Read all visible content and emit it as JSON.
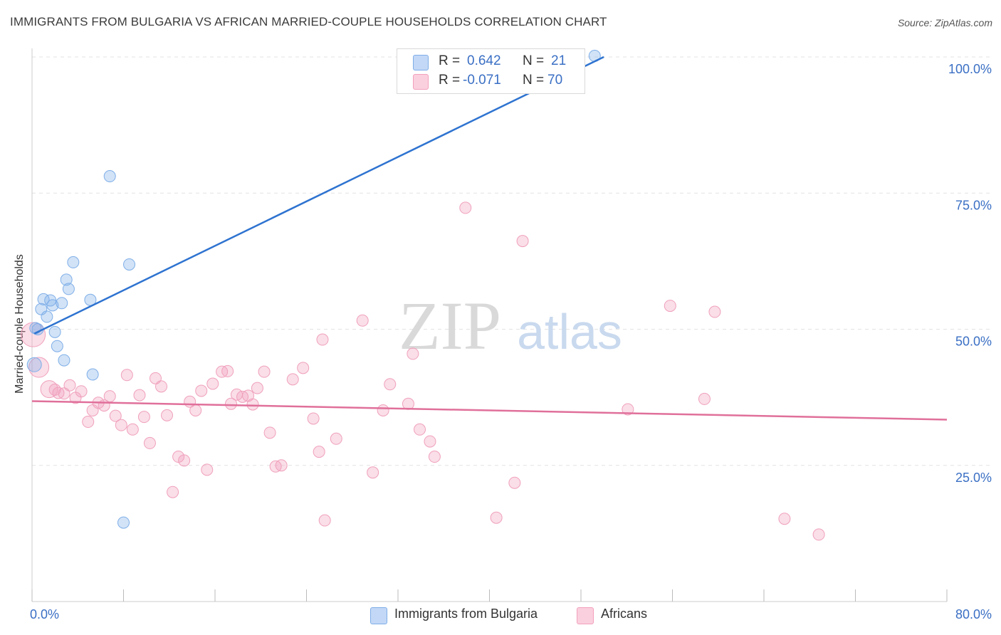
{
  "chart_data": {
    "type": "scatter",
    "title": "IMMIGRANTS FROM BULGARIA VS AFRICAN MARRIED-COUPLE HOUSEHOLDS CORRELATION CHART",
    "source": "Source: ZipAtlas.com",
    "watermark": {
      "zip": "ZIP",
      "atlas": "atlas"
    },
    "ylabel": "Married-couple Households",
    "xlim": [
      0,
      80
    ],
    "ylim": [
      0,
      102
    ],
    "x_tick_labels": [
      {
        "value": 0,
        "label": "0.0%"
      },
      {
        "value": 80,
        "label": "80.0%"
      }
    ],
    "y_tick_labels": [
      {
        "value": 25,
        "label": "25.0%"
      },
      {
        "value": 50,
        "label": "50.0%"
      },
      {
        "value": 75,
        "label": "75.0%"
      },
      {
        "value": 100,
        "label": "100.0%"
      }
    ],
    "legend": [
      {
        "r_label": "R = ",
        "r_value": "0.642",
        "n_label": "N = ",
        "n_value": "21"
      },
      {
        "r_label": "R = ",
        "r_value": "-0.071",
        "n_label": "N = ",
        "n_value": "70"
      }
    ],
    "series": [
      {
        "name": "Immigrants from Bulgaria",
        "color": "#7eaee8",
        "line_color": "#2e73d0",
        "trend": [
          [
            0.2,
            49.2
          ],
          [
            50.0,
            100.0
          ]
        ],
        "points": [
          [
            0.2,
            43.5
          ],
          [
            0.5,
            50.0
          ],
          [
            0.8,
            53.7
          ],
          [
            1.0,
            55.5
          ],
          [
            1.3,
            52.3
          ],
          [
            1.6,
            55.3
          ],
          [
            1.8,
            54.4
          ],
          [
            2.0,
            49.5
          ],
          [
            2.2,
            46.9
          ],
          [
            2.6,
            54.8
          ],
          [
            2.8,
            44.3
          ],
          [
            3.0,
            59.1
          ],
          [
            3.2,
            57.4
          ],
          [
            3.6,
            62.3
          ],
          [
            5.1,
            55.4
          ],
          [
            5.3,
            41.7
          ],
          [
            6.8,
            78.1
          ],
          [
            8.0,
            14.5
          ],
          [
            8.5,
            61.9
          ],
          [
            49.2,
            100.2
          ],
          [
            0.3,
            50.2
          ]
        ]
      },
      {
        "name": "Africans",
        "color": "#f2a0bc",
        "line_color": "#e0709a",
        "trend": [
          [
            0.0,
            36.8
          ],
          [
            80.0,
            33.4
          ]
        ],
        "points": [
          [
            0.1,
            49.0
          ],
          [
            0.6,
            43.0
          ],
          [
            1.5,
            39.0
          ],
          [
            2.0,
            38.9
          ],
          [
            2.3,
            38.3
          ],
          [
            2.8,
            38.2
          ],
          [
            3.3,
            39.7
          ],
          [
            3.8,
            37.4
          ],
          [
            4.3,
            38.6
          ],
          [
            4.9,
            33.0
          ],
          [
            5.3,
            35.1
          ],
          [
            5.8,
            36.5
          ],
          [
            6.3,
            36.0
          ],
          [
            6.8,
            37.7
          ],
          [
            7.3,
            34.1
          ],
          [
            7.8,
            32.4
          ],
          [
            8.3,
            41.6
          ],
          [
            8.8,
            31.6
          ],
          [
            9.4,
            37.9
          ],
          [
            9.8,
            33.9
          ],
          [
            10.3,
            29.1
          ],
          [
            10.8,
            41.0
          ],
          [
            11.3,
            39.5
          ],
          [
            11.8,
            34.2
          ],
          [
            12.3,
            20.1
          ],
          [
            12.8,
            26.6
          ],
          [
            13.3,
            25.9
          ],
          [
            13.8,
            36.7
          ],
          [
            14.3,
            35.1
          ],
          [
            14.8,
            38.7
          ],
          [
            15.3,
            24.2
          ],
          [
            15.8,
            40.0
          ],
          [
            16.6,
            42.2
          ],
          [
            17.1,
            42.3
          ],
          [
            17.4,
            36.3
          ],
          [
            17.9,
            38.0
          ],
          [
            18.4,
            37.6
          ],
          [
            18.9,
            37.8
          ],
          [
            19.3,
            36.2
          ],
          [
            19.7,
            39.2
          ],
          [
            20.3,
            42.2
          ],
          [
            20.8,
            31.0
          ],
          [
            21.3,
            24.8
          ],
          [
            21.8,
            25.0
          ],
          [
            22.8,
            40.8
          ],
          [
            23.7,
            42.9
          ],
          [
            24.6,
            33.6
          ],
          [
            25.1,
            27.5
          ],
          [
            25.6,
            14.9
          ],
          [
            25.4,
            48.1
          ],
          [
            26.6,
            29.9
          ],
          [
            28.9,
            51.6
          ],
          [
            29.8,
            23.7
          ],
          [
            30.7,
            35.1
          ],
          [
            31.3,
            39.9
          ],
          [
            32.9,
            36.3
          ],
          [
            33.3,
            45.5
          ],
          [
            33.9,
            31.6
          ],
          [
            34.8,
            29.4
          ],
          [
            35.2,
            26.6
          ],
          [
            37.9,
            72.3
          ],
          [
            40.6,
            15.4
          ],
          [
            42.2,
            21.8
          ],
          [
            42.9,
            66.2
          ],
          [
            52.1,
            35.3
          ],
          [
            55.8,
            54.3
          ],
          [
            58.8,
            37.2
          ],
          [
            59.7,
            53.2
          ],
          [
            65.8,
            15.2
          ],
          [
            68.8,
            12.3
          ]
        ]
      }
    ]
  }
}
